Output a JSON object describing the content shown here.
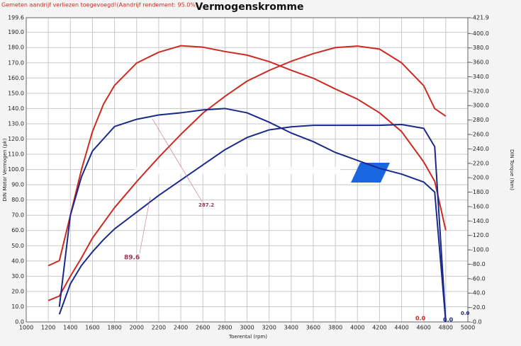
{
  "chart_data": {
    "type": "line",
    "note": "Gemeten aandrijf verliezen toegevoegd!(Aandrijf rendement: 95.0%)",
    "title": "Vermogenskromme",
    "xlabel": "Toerental (rpm)",
    "ylabel": "DIN Motor Vermogen (pk)",
    "y2label": "DIN Torque (Nm)",
    "x": [
      1200,
      1300,
      1400,
      1500,
      1600,
      1700,
      1800,
      2000,
      2200,
      2400,
      2600,
      2800,
      3000,
      3200,
      3400,
      3600,
      3800,
      4000,
      4200,
      4400,
      4600,
      4700,
      4800
    ],
    "series": [
      {
        "color": "#cc2a22",
        "axis": "y2",
        "values": [
          78,
          85,
          148,
          211,
          264,
          302,
          328,
          359,
          374,
          383,
          381,
          375,
          370,
          361,
          349,
          338,
          323,
          309,
          290,
          264,
          222,
          195,
          127
        ]
      },
      {
        "color": "#cc2a22",
        "values": [
          14,
          17,
          30,
          42,
          55,
          65,
          75,
          92,
          108,
          123,
          137,
          148,
          158,
          165,
          171,
          176,
          180,
          181,
          179,
          170,
          155,
          140,
          135
        ]
      },
      {
        "color": "#1a2a8a",
        "axis": "y2",
        "values": [
          null,
          21,
          148,
          201,
          237,
          254,
          271,
          281,
          287,
          290,
          294,
          296,
          290,
          277,
          262,
          250,
          235,
          224,
          213,
          205,
          194,
          180,
          0
        ]
      },
      {
        "color": "#1a2a8a",
        "values": [
          null,
          5,
          25,
          37,
          46,
          54,
          61,
          72,
          83,
          93,
          103,
          113,
          121,
          126,
          128,
          129,
          129,
          129,
          129,
          129.5,
          127,
          115,
          0
        ]
      }
    ],
    "annotations": [
      "287.2",
      "89.6",
      "0.0",
      "0.0",
      "0.0"
    ],
    "xlim": [
      1000,
      5000
    ],
    "xticks": [
      1000,
      1200,
      1400,
      1600,
      1800,
      2000,
      2200,
      2400,
      2600,
      2800,
      3000,
      3200,
      3400,
      3600,
      3800,
      4000,
      4200,
      4400,
      4600,
      4800,
      5000
    ],
    "ylim": [
      0,
      199.6
    ],
    "yticks": [
      {
        "value": 0,
        "label": "0.0"
      },
      {
        "value": 10,
        "label": "10.0"
      },
      {
        "value": 20,
        "label": "20.0"
      },
      {
        "value": 30,
        "label": "30.0"
      },
      {
        "value": 40,
        "label": "40.0"
      },
      {
        "value": 50,
        "label": "50.0"
      },
      {
        "value": 60,
        "label": "60.0"
      },
      {
        "value": 70,
        "label": "70.0"
      },
      {
        "value": 80,
        "label": "80.0"
      },
      {
        "value": 90,
        "label": "90.0"
      },
      {
        "value": 100,
        "label": "100.0"
      },
      {
        "value": 110,
        "label": "110.0"
      },
      {
        "value": 120,
        "label": "120.0"
      },
      {
        "value": 130,
        "label": "130.0"
      },
      {
        "value": 140,
        "label": "140.0"
      },
      {
        "value": 150,
        "label": "150.0"
      },
      {
        "value": 160,
        "label": "160.0"
      },
      {
        "value": 170,
        "label": "170.0"
      },
      {
        "value": 180,
        "label": "180.0"
      },
      {
        "value": 190,
        "label": "190.0"
      },
      199.6
    ],
    "y2lim": [
      0,
      421.9
    ],
    "y2ticks": [
      {
        "value": 0,
        "label": "-0.0"
      },
      {
        "value": 20,
        "label": "-20.0"
      },
      {
        "value": 40,
        "label": "-40.0"
      },
      {
        "value": 60,
        "label": "-60.0"
      },
      {
        "value": 80,
        "label": "-80.0"
      },
      {
        "value": 100,
        "label": "-100.0"
      },
      {
        "value": 120,
        "label": "-120.0"
      },
      {
        "value": 140,
        "label": "-140.0"
      },
      {
        "value": 160,
        "label": "-160.0"
      },
      {
        "value": 180,
        "label": "-180.0"
      },
      {
        "value": 200,
        "label": "-200.0"
      },
      {
        "value": 220,
        "label": "-220.0"
      },
      {
        "value": 240,
        "label": "-240.0"
      },
      {
        "value": 260,
        "label": "-260.0"
      },
      {
        "value": 280,
        "label": "-280.0"
      },
      {
        "value": 300,
        "label": "-300.0"
      },
      {
        "value": 320,
        "label": "-320.0"
      },
      {
        "value": 340,
        "label": "-340.0"
      },
      {
        "value": 360,
        "label": "-360.0"
      },
      {
        "value": 380,
        "label": "-380.0"
      },
      {
        "value": 400,
        "label": "-400.0"
      },
      {
        "value": 421.9,
        "label": "-421.9"
      }
    ],
    "grid": true
  }
}
